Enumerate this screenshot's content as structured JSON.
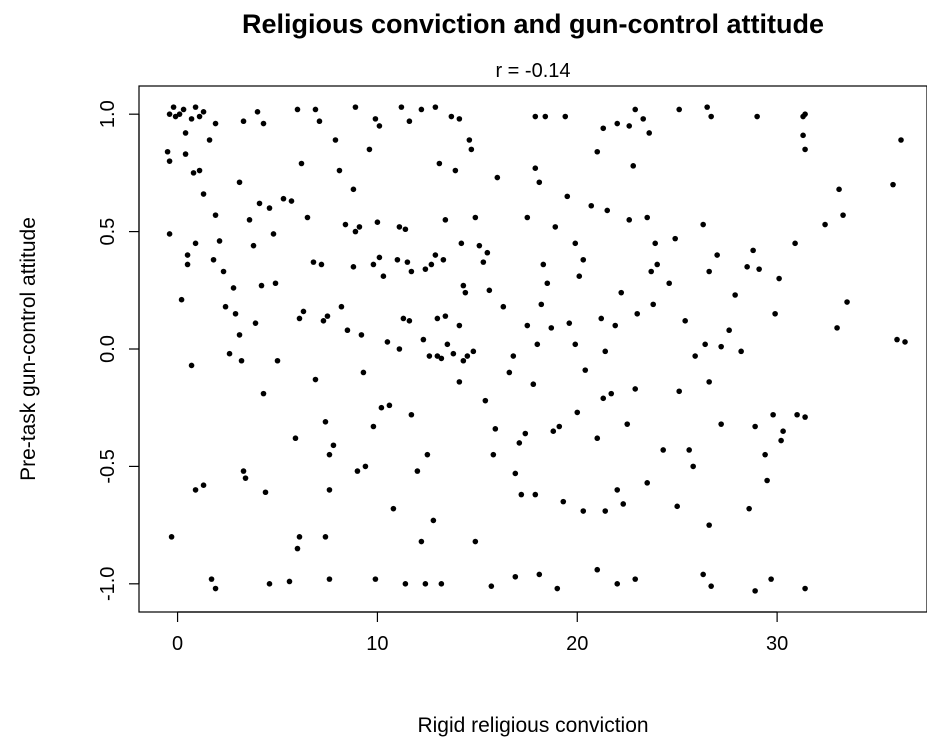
{
  "chart_data": {
    "type": "scatter",
    "title": "Religious conviction and gun-control attitude",
    "subtitle": "r  =  -0.14",
    "xlabel": "Rigid religious conviction",
    "ylabel": "Pre-task gun-control attitude",
    "xlim": [
      -1.93,
      37.5
    ],
    "ylim": [
      -1.12,
      1.12
    ],
    "xticks": [
      0,
      10,
      20,
      30
    ],
    "xtick_labels": [
      "0",
      "10",
      "20",
      "30"
    ],
    "yticks": [
      -1.0,
      -0.5,
      0.0,
      0.5,
      1.0
    ],
    "ytick_labels": [
      "-1.0",
      "-0.5",
      "0.0",
      "0.5",
      "1.0"
    ],
    "grid": false,
    "point_color": "#000000",
    "points": [
      [
        -0.4,
        1.0
      ],
      [
        -0.2,
        1.03
      ],
      [
        0.1,
        1.0
      ],
      [
        0.3,
        1.02
      ],
      [
        -0.1,
        0.99
      ],
      [
        0.9,
        1.03
      ],
      [
        1.3,
        1.01
      ],
      [
        -0.5,
        0.84
      ],
      [
        -0.4,
        0.8
      ],
      [
        0.4,
        0.92
      ],
      [
        0.4,
        0.83
      ],
      [
        -0.4,
        0.49
      ],
      [
        0.2,
        0.21
      ],
      [
        0.5,
        0.36
      ],
      [
        0.5,
        0.4
      ],
      [
        0.9,
        0.45
      ],
      [
        0.8,
        0.75
      ],
      [
        1.1,
        0.76
      ],
      [
        1.3,
        0.66
      ],
      [
        1.6,
        0.89
      ],
      [
        0.7,
        0.98
      ],
      [
        1.1,
        0.99
      ],
      [
        1.9,
        0.96
      ],
      [
        0.7,
        -0.07
      ],
      [
        0.9,
        -0.6
      ],
      [
        1.3,
        -0.58
      ],
      [
        -0.3,
        -0.8
      ],
      [
        1.7,
        -0.98
      ],
      [
        1.9,
        -1.02
      ],
      [
        1.8,
        0.38
      ],
      [
        1.9,
        0.57
      ],
      [
        2.1,
        0.46
      ],
      [
        2.4,
        0.18
      ],
      [
        2.3,
        0.33
      ],
      [
        2.6,
        -0.02
      ],
      [
        2.8,
        0.26
      ],
      [
        2.9,
        0.15
      ],
      [
        3.1,
        0.06
      ],
      [
        3.2,
        -0.05
      ],
      [
        3.1,
        0.71
      ],
      [
        3.3,
        0.97
      ],
      [
        3.6,
        0.55
      ],
      [
        3.8,
        0.44
      ],
      [
        3.9,
        0.11
      ],
      [
        4.0,
        1.01
      ],
      [
        4.3,
        0.96
      ],
      [
        4.1,
        0.62
      ],
      [
        4.2,
        0.27
      ],
      [
        4.3,
        -0.19
      ],
      [
        4.6,
        0.6
      ],
      [
        4.8,
        0.49
      ],
      [
        4.9,
        0.28
      ],
      [
        5.0,
        -0.05
      ],
      [
        3.3,
        -0.52
      ],
      [
        3.4,
        -0.55
      ],
      [
        4.4,
        -0.61
      ],
      [
        4.6,
        -1.0
      ],
      [
        5.6,
        -0.99
      ],
      [
        5.3,
        0.64
      ],
      [
        5.7,
        0.63
      ],
      [
        6.0,
        1.02
      ],
      [
        6.2,
        0.79
      ],
      [
        6.5,
        0.56
      ],
      [
        6.1,
        0.13
      ],
      [
        6.3,
        0.16
      ],
      [
        5.9,
        -0.38
      ],
      [
        6.1,
        -0.8
      ],
      [
        6.0,
        -0.85
      ],
      [
        6.9,
        1.02
      ],
      [
        7.1,
        0.97
      ],
      [
        6.8,
        0.37
      ],
      [
        7.2,
        0.36
      ],
      [
        7.3,
        0.12
      ],
      [
        7.5,
        0.14
      ],
      [
        6.9,
        -0.13
      ],
      [
        7.4,
        -0.31
      ],
      [
        7.6,
        -0.45
      ],
      [
        7.8,
        -0.41
      ],
      [
        7.6,
        -0.6
      ],
      [
        7.4,
        -0.8
      ],
      [
        7.6,
        -0.98
      ],
      [
        7.9,
        0.89
      ],
      [
        8.1,
        0.76
      ],
      [
        8.4,
        0.53
      ],
      [
        8.2,
        0.18
      ],
      [
        8.5,
        0.08
      ],
      [
        8.9,
        1.03
      ],
      [
        8.8,
        0.68
      ],
      [
        8.9,
        0.5
      ],
      [
        9.1,
        0.52
      ],
      [
        8.8,
        0.35
      ],
      [
        9.2,
        0.06
      ],
      [
        9.3,
        -0.1
      ],
      [
        9.6,
        0.85
      ],
      [
        9.9,
        0.98
      ],
      [
        10.1,
        0.95
      ],
      [
        10.0,
        0.54
      ],
      [
        9.8,
        0.36
      ],
      [
        10.1,
        0.39
      ],
      [
        10.3,
        0.31
      ],
      [
        10.5,
        0.03
      ],
      [
        10.2,
        -0.25
      ],
      [
        10.6,
        -0.24
      ],
      [
        9.8,
        -0.33
      ],
      [
        9.0,
        -0.52
      ],
      [
        9.4,
        -0.5
      ],
      [
        9.9,
        -0.98
      ],
      [
        10.8,
        -0.68
      ],
      [
        11.2,
        1.03
      ],
      [
        11.6,
        0.97
      ],
      [
        11.1,
        0.52
      ],
      [
        11.4,
        0.51
      ],
      [
        11.5,
        0.37
      ],
      [
        11.0,
        0.38
      ],
      [
        11.7,
        0.33
      ],
      [
        11.3,
        0.13
      ],
      [
        11.6,
        0.12
      ],
      [
        11.1,
        0.0
      ],
      [
        11.7,
        -0.28
      ],
      [
        11.4,
        -1.0
      ],
      [
        12.2,
        1.02
      ],
      [
        12.4,
        0.34
      ],
      [
        12.7,
        0.36
      ],
      [
        12.3,
        0.04
      ],
      [
        12.6,
        -0.03
      ],
      [
        12.0,
        -0.52
      ],
      [
        12.5,
        -0.45
      ],
      [
        12.8,
        -0.73
      ],
      [
        12.2,
        -0.82
      ],
      [
        12.4,
        -1.0
      ],
      [
        12.9,
        1.03
      ],
      [
        13.1,
        0.79
      ],
      [
        13.4,
        0.55
      ],
      [
        12.9,
        0.4
      ],
      [
        13.3,
        0.38
      ],
      [
        13.4,
        0.14
      ],
      [
        13.0,
        0.13
      ],
      [
        13.2,
        -0.04
      ],
      [
        13.5,
        0.02
      ],
      [
        13.0,
        -0.03
      ],
      [
        13.8,
        -0.02
      ],
      [
        13.2,
        -1.0
      ],
      [
        13.7,
        0.99
      ],
      [
        13.9,
        0.76
      ],
      [
        14.1,
        0.98
      ],
      [
        14.2,
        0.45
      ],
      [
        14.4,
        0.24
      ],
      [
        14.3,
        0.27
      ],
      [
        14.1,
        0.1
      ],
      [
        14.3,
        -0.05
      ],
      [
        14.5,
        -0.03
      ],
      [
        14.1,
        -0.14
      ],
      [
        14.6,
        0.89
      ],
      [
        14.7,
        0.85
      ],
      [
        14.9,
        0.56
      ],
      [
        15.1,
        0.44
      ],
      [
        15.3,
        0.37
      ],
      [
        15.5,
        0.41
      ],
      [
        15.6,
        0.25
      ],
      [
        14.8,
        -0.01
      ],
      [
        15.4,
        -0.22
      ],
      [
        15.9,
        -0.34
      ],
      [
        15.8,
        -0.45
      ],
      [
        14.9,
        -0.82
      ],
      [
        15.7,
        -1.01
      ],
      [
        16.0,
        0.73
      ],
      [
        16.3,
        0.18
      ],
      [
        16.6,
        -0.1
      ],
      [
        16.8,
        -0.03
      ],
      [
        16.9,
        -0.53
      ],
      [
        17.2,
        -0.62
      ],
      [
        16.9,
        -0.97
      ],
      [
        17.4,
        -0.36
      ],
      [
        17.1,
        -0.4
      ],
      [
        17.5,
        0.1
      ],
      [
        17.5,
        0.56
      ],
      [
        17.9,
        0.77
      ],
      [
        18.1,
        0.71
      ],
      [
        17.9,
        0.99
      ],
      [
        18.4,
        0.99
      ],
      [
        18.3,
        0.36
      ],
      [
        18.5,
        0.28
      ],
      [
        18.2,
        0.19
      ],
      [
        18.0,
        0.02
      ],
      [
        17.8,
        -0.15
      ],
      [
        17.9,
        -0.62
      ],
      [
        18.1,
        -0.96
      ],
      [
        18.9,
        0.52
      ],
      [
        18.7,
        0.09
      ],
      [
        18.8,
        -0.35
      ],
      [
        19.1,
        -0.33
      ],
      [
        19.3,
        -0.65
      ],
      [
        19.0,
        -1.02
      ],
      [
        19.5,
        0.65
      ],
      [
        19.4,
        0.99
      ],
      [
        19.9,
        0.45
      ],
      [
        19.6,
        0.11
      ],
      [
        20.1,
        0.31
      ],
      [
        20.3,
        0.38
      ],
      [
        19.9,
        0.02
      ],
      [
        20.4,
        -0.09
      ],
      [
        20.0,
        -0.27
      ],
      [
        20.3,
        -0.69
      ],
      [
        20.7,
        0.61
      ],
      [
        21.0,
        0.84
      ],
      [
        21.3,
        0.94
      ],
      [
        21.5,
        0.59
      ],
      [
        21.2,
        0.13
      ],
      [
        21.4,
        -0.01
      ],
      [
        21.0,
        -0.38
      ],
      [
        21.3,
        -0.21
      ],
      [
        21.7,
        -0.19
      ],
      [
        21.4,
        -0.69
      ],
      [
        21.0,
        -0.94
      ],
      [
        22.0,
        0.96
      ],
      [
        21.9,
        0.1
      ],
      [
        22.2,
        0.24
      ],
      [
        22.0,
        -0.6
      ],
      [
        22.3,
        -0.66
      ],
      [
        22.0,
        -1.0
      ],
      [
        22.6,
        0.95
      ],
      [
        22.9,
        1.02
      ],
      [
        22.8,
        0.78
      ],
      [
        22.6,
        0.55
      ],
      [
        23.0,
        0.15
      ],
      [
        22.9,
        -0.17
      ],
      [
        22.5,
        -0.32
      ],
      [
        22.9,
        -0.98
      ],
      [
        23.3,
        0.98
      ],
      [
        23.6,
        0.92
      ],
      [
        23.5,
        0.56
      ],
      [
        23.9,
        0.45
      ],
      [
        23.7,
        0.33
      ],
      [
        24.0,
        0.36
      ],
      [
        23.8,
        0.19
      ],
      [
        23.5,
        -0.57
      ],
      [
        24.3,
        -0.43
      ],
      [
        24.6,
        0.28
      ],
      [
        24.9,
        0.47
      ],
      [
        25.1,
        1.02
      ],
      [
        25.4,
        0.12
      ],
      [
        25.1,
        -0.18
      ],
      [
        25.6,
        -0.43
      ],
      [
        25.8,
        -0.5
      ],
      [
        25.0,
        -0.67
      ],
      [
        25.9,
        -0.03
      ],
      [
        26.3,
        0.53
      ],
      [
        26.5,
        1.03
      ],
      [
        26.7,
        0.99
      ],
      [
        26.6,
        0.33
      ],
      [
        26.4,
        0.02
      ],
      [
        26.6,
        -0.14
      ],
      [
        26.6,
        -0.75
      ],
      [
        26.3,
        -0.96
      ],
      [
        26.7,
        -1.01
      ],
      [
        27.0,
        0.4
      ],
      [
        27.2,
        0.01
      ],
      [
        27.2,
        -0.32
      ],
      [
        27.6,
        0.08
      ],
      [
        27.9,
        0.23
      ],
      [
        28.2,
        -0.01
      ],
      [
        28.5,
        0.35
      ],
      [
        28.8,
        0.42
      ],
      [
        29.0,
        0.99
      ],
      [
        29.1,
        0.34
      ],
      [
        28.6,
        -0.68
      ],
      [
        28.9,
        -0.33
      ],
      [
        29.4,
        -0.45
      ],
      [
        29.5,
        -0.56
      ],
      [
        29.8,
        -0.28
      ],
      [
        29.7,
        -0.98
      ],
      [
        28.9,
        -1.03
      ],
      [
        29.9,
        0.15
      ],
      [
        30.1,
        0.3
      ],
      [
        30.2,
        -0.39
      ],
      [
        30.3,
        -0.35
      ],
      [
        30.9,
        0.45
      ],
      [
        31.0,
        -0.28
      ],
      [
        31.3,
        0.99
      ],
      [
        31.4,
        1.0
      ],
      [
        31.3,
        0.91
      ],
      [
        31.4,
        0.85
      ],
      [
        31.4,
        -0.29
      ],
      [
        31.4,
        -1.02
      ],
      [
        32.4,
        0.53
      ],
      [
        33.0,
        0.09
      ],
      [
        33.1,
        0.68
      ],
      [
        33.3,
        0.57
      ],
      [
        33.5,
        0.2
      ],
      [
        35.8,
        0.7
      ],
      [
        36.2,
        0.89
      ],
      [
        36.0,
        0.04
      ],
      [
        36.4,
        0.03
      ]
    ]
  }
}
